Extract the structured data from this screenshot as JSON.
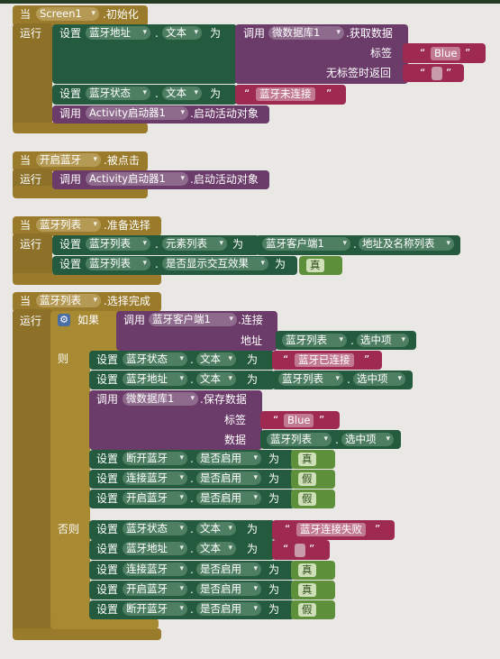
{
  "kw": {
    "when": "当",
    "do": "运行",
    "set": "设置",
    "to": "为",
    "call": "调用",
    "dot": ".",
    "if": "如果",
    "then": "则",
    "else": "否则",
    "quote_open": "“",
    "quote_close": "”"
  },
  "block1": {
    "component": "Screen1",
    "event": ".初始化",
    "row1": {
      "target": "蓝牙地址",
      "prop": "文本",
      "call_comp": "微数据库1",
      "method": ".获取数据",
      "tag_label": "标签",
      "tag_value": "Blue",
      "notfound_label": "无标签时返回",
      "notfound_value": ""
    },
    "row2": {
      "target": "蓝牙状态",
      "prop": "文本",
      "value": "蓝牙未连接"
    },
    "row3": {
      "comp": "Activity启动器1",
      "method": ".启动活动对象"
    }
  },
  "block2": {
    "component": "开启蓝牙",
    "event": ".被点击",
    "row1": {
      "comp": "Activity启动器1",
      "method": ".启动活动对象"
    }
  },
  "block3": {
    "component": "蓝牙列表",
    "event": ".准备选择",
    "row1": {
      "target": "蓝牙列表",
      "prop": "元素列表",
      "src_comp": "蓝牙客户端1",
      "src_prop": "地址及名称列表"
    },
    "row2": {
      "target": "蓝牙列表",
      "prop": "是否显示交互效果",
      "value": "真"
    }
  },
  "block4": {
    "component": "蓝牙列表",
    "event": ".选择完成",
    "cond": {
      "comp": "蓝牙客户端1",
      "method": ".连接",
      "arg_label": "地址",
      "arg_comp": "蓝牙列表",
      "arg_prop": "选中项"
    },
    "then": [
      {
        "target": "蓝牙状态",
        "prop": "文本",
        "value": "蓝牙已连接"
      },
      {
        "target": "蓝牙地址",
        "prop": "文本",
        "src_comp": "蓝牙列表",
        "src_prop": "选中项"
      }
    ],
    "save": {
      "comp": "微数据库1",
      "method": ".保存数据",
      "tag_label": "标签",
      "tag_value": "Blue",
      "data_label": "数据",
      "data_comp": "蓝牙列表",
      "data_prop": "选中项"
    },
    "then_bools": [
      {
        "target": "断开蓝牙",
        "prop": "是否启用",
        "value": "真"
      },
      {
        "target": "连接蓝牙",
        "prop": "是否启用",
        "value": "假"
      },
      {
        "target": "开启蓝牙",
        "prop": "是否启用",
        "value": "假"
      }
    ],
    "else": [
      {
        "target": "蓝牙状态",
        "prop": "文本",
        "value": "蓝牙连接失败"
      },
      {
        "target": "蓝牙地址",
        "prop": "文本",
        "value": ""
      }
    ],
    "else_bools": [
      {
        "target": "连接蓝牙",
        "prop": "是否启用",
        "value": "真"
      },
      {
        "target": "开启蓝牙",
        "prop": "是否启用",
        "value": "真"
      },
      {
        "target": "断开蓝牙",
        "prop": "是否启用",
        "value": "假"
      }
    ]
  }
}
